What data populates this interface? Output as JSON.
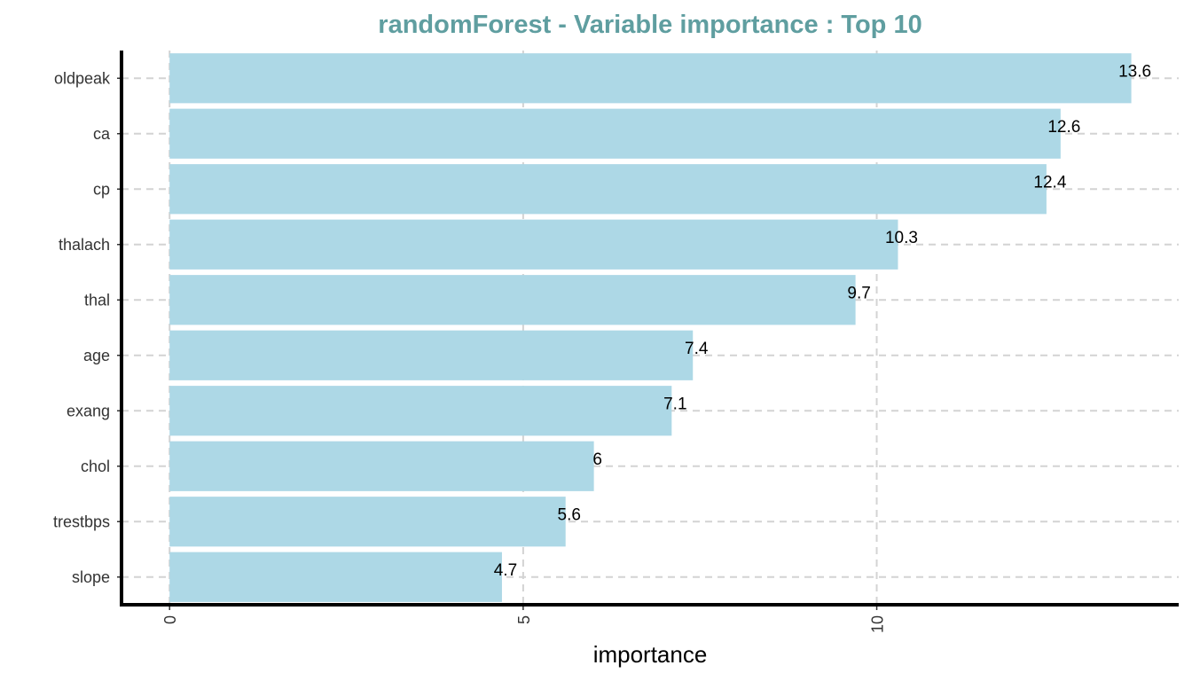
{
  "chart_data": {
    "type": "bar",
    "orientation": "horizontal",
    "title": "randomForest - Variable importance : Top 10",
    "xlabel": "importance",
    "ylabel": "",
    "categories": [
      "oldpeak",
      "ca",
      "cp",
      "thalach",
      "thal",
      "age",
      "exang",
      "chol",
      "trestbps",
      "slope"
    ],
    "values": [
      13.6,
      12.6,
      12.4,
      10.3,
      9.7,
      7.4,
      7.1,
      6,
      5.6,
      4.7
    ],
    "data_labels": [
      "13.6",
      "12.6",
      "12.4",
      "10.3",
      "9.7",
      "7.4",
      "7.1",
      "6",
      "5.6",
      "4.7"
    ],
    "x_ticks": [
      0,
      5,
      10
    ],
    "x_tick_labels": [
      "0",
      "5",
      "10"
    ],
    "xlim": [
      -0.68,
      14.27
    ],
    "grid": "dashed",
    "legend": "none",
    "colors": {
      "bar": "#ADD8E6",
      "title": "#5F9EA0",
      "grid": "#D3D3D3",
      "axis": "#000000"
    }
  }
}
